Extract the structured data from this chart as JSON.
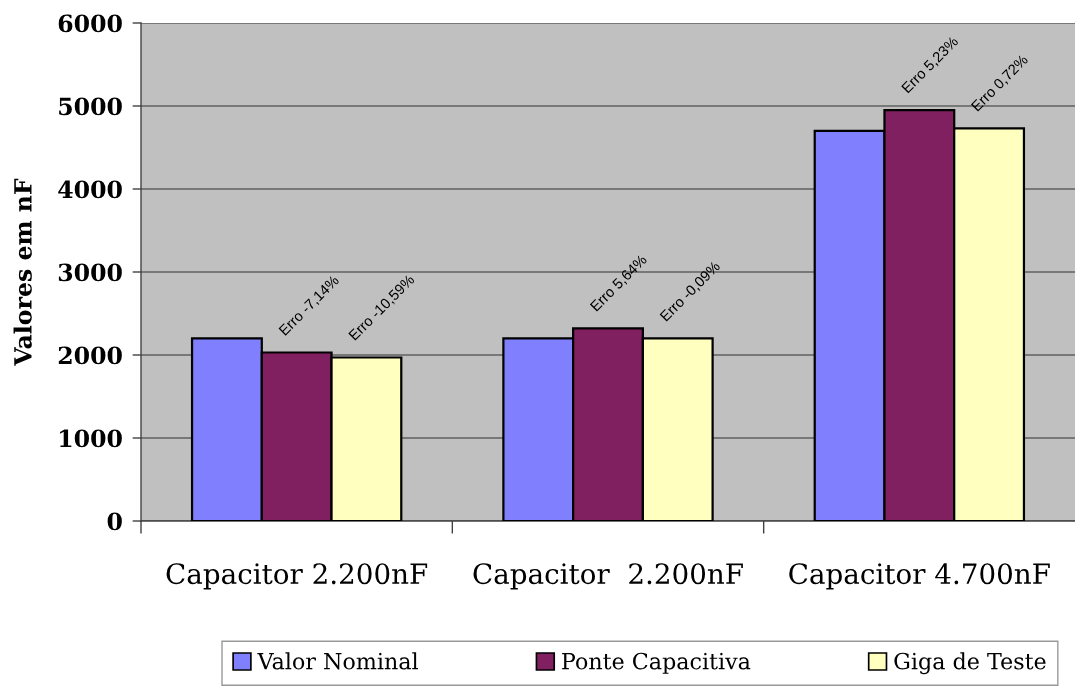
{
  "chart_data": {
    "type": "bar",
    "ylabel": "Valores em nF",
    "categories": [
      "Capacitor 2.200nF",
      "Capacitor  2.200nF",
      "Capacitor 4.700nF"
    ],
    "series": [
      {
        "name": "Valor Nominal",
        "color": "#8080ff",
        "values": [
          2200,
          2200,
          4700
        ]
      },
      {
        "name": "Ponte Capacitiva",
        "color": "#802060",
        "values": [
          2030,
          2320,
          4950
        ]
      },
      {
        "name": "Giga de Teste",
        "color": "#ffffc0",
        "values": [
          1970,
          2200,
          4730
        ]
      }
    ],
    "annotations": [
      {
        "text": "Erro -7,14%",
        "x": "Capacitor 2.200nF",
        "y": 2030
      },
      "Erro -10,59%",
      {
        "text": "Erro 5,64%",
        "x": "Capacitor  2.200nF",
        "y": 2320
      },
      "Erro -0,09%",
      {
        "text": "Erro 5,23%",
        "x": "Capacitor 4.700nF",
        "y": 4950
      },
      "Erro 0,72%"
    ],
    "ylim": [
      0,
      6000
    ],
    "yticks": [
      0,
      1000,
      2000,
      3000,
      4000,
      5000,
      6000
    ],
    "grid": "y",
    "legend": "bottom"
  }
}
